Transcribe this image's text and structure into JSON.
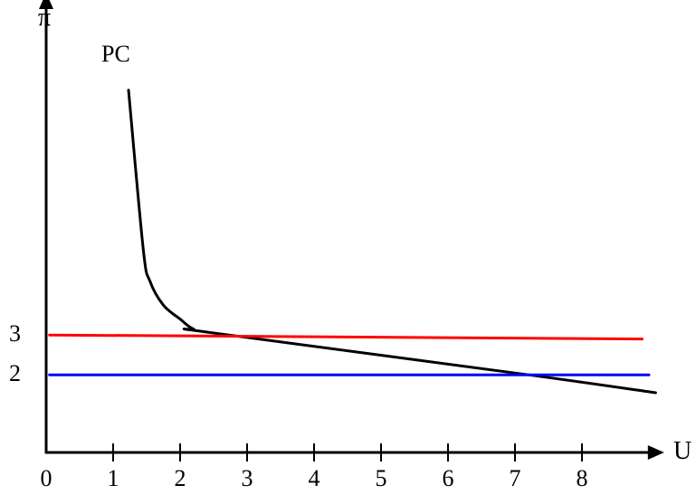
{
  "chart_data": {
    "type": "line",
    "title": "",
    "xlabel": "U",
    "ylabel": "π",
    "xlim": [
      0,
      9.2
    ],
    "ylim": [
      0,
      11.5
    ],
    "x_ticks": [
      "0",
      "1",
      "2",
      "3",
      "4",
      "5",
      "6",
      "7",
      "8"
    ],
    "y_ticks": [
      {
        "value": 3,
        "label": "3"
      },
      {
        "value": 2,
        "label": "2"
      }
    ],
    "grid": false,
    "legend": "none",
    "series": [
      {
        "name": "PC",
        "color": "#000000",
        "points": [
          [
            1.23,
            9.1
          ],
          [
            1.45,
            5.1
          ],
          [
            1.55,
            4.3
          ],
          [
            1.75,
            3.7
          ],
          [
            2.0,
            3.35
          ],
          [
            2.2,
            3.1
          ],
          [
            2.5,
            3.0
          ],
          [
            7.2,
            1.95
          ],
          [
            9.1,
            1.5
          ]
        ]
      },
      {
        "name": "",
        "color": "#ff0000",
        "points": [
          [
            0.05,
            2.95
          ],
          [
            8.9,
            2.85
          ]
        ]
      },
      {
        "name": "",
        "color": "#0000ff",
        "points": [
          [
            0.05,
            1.95
          ],
          [
            9.0,
            1.95
          ]
        ]
      }
    ]
  }
}
